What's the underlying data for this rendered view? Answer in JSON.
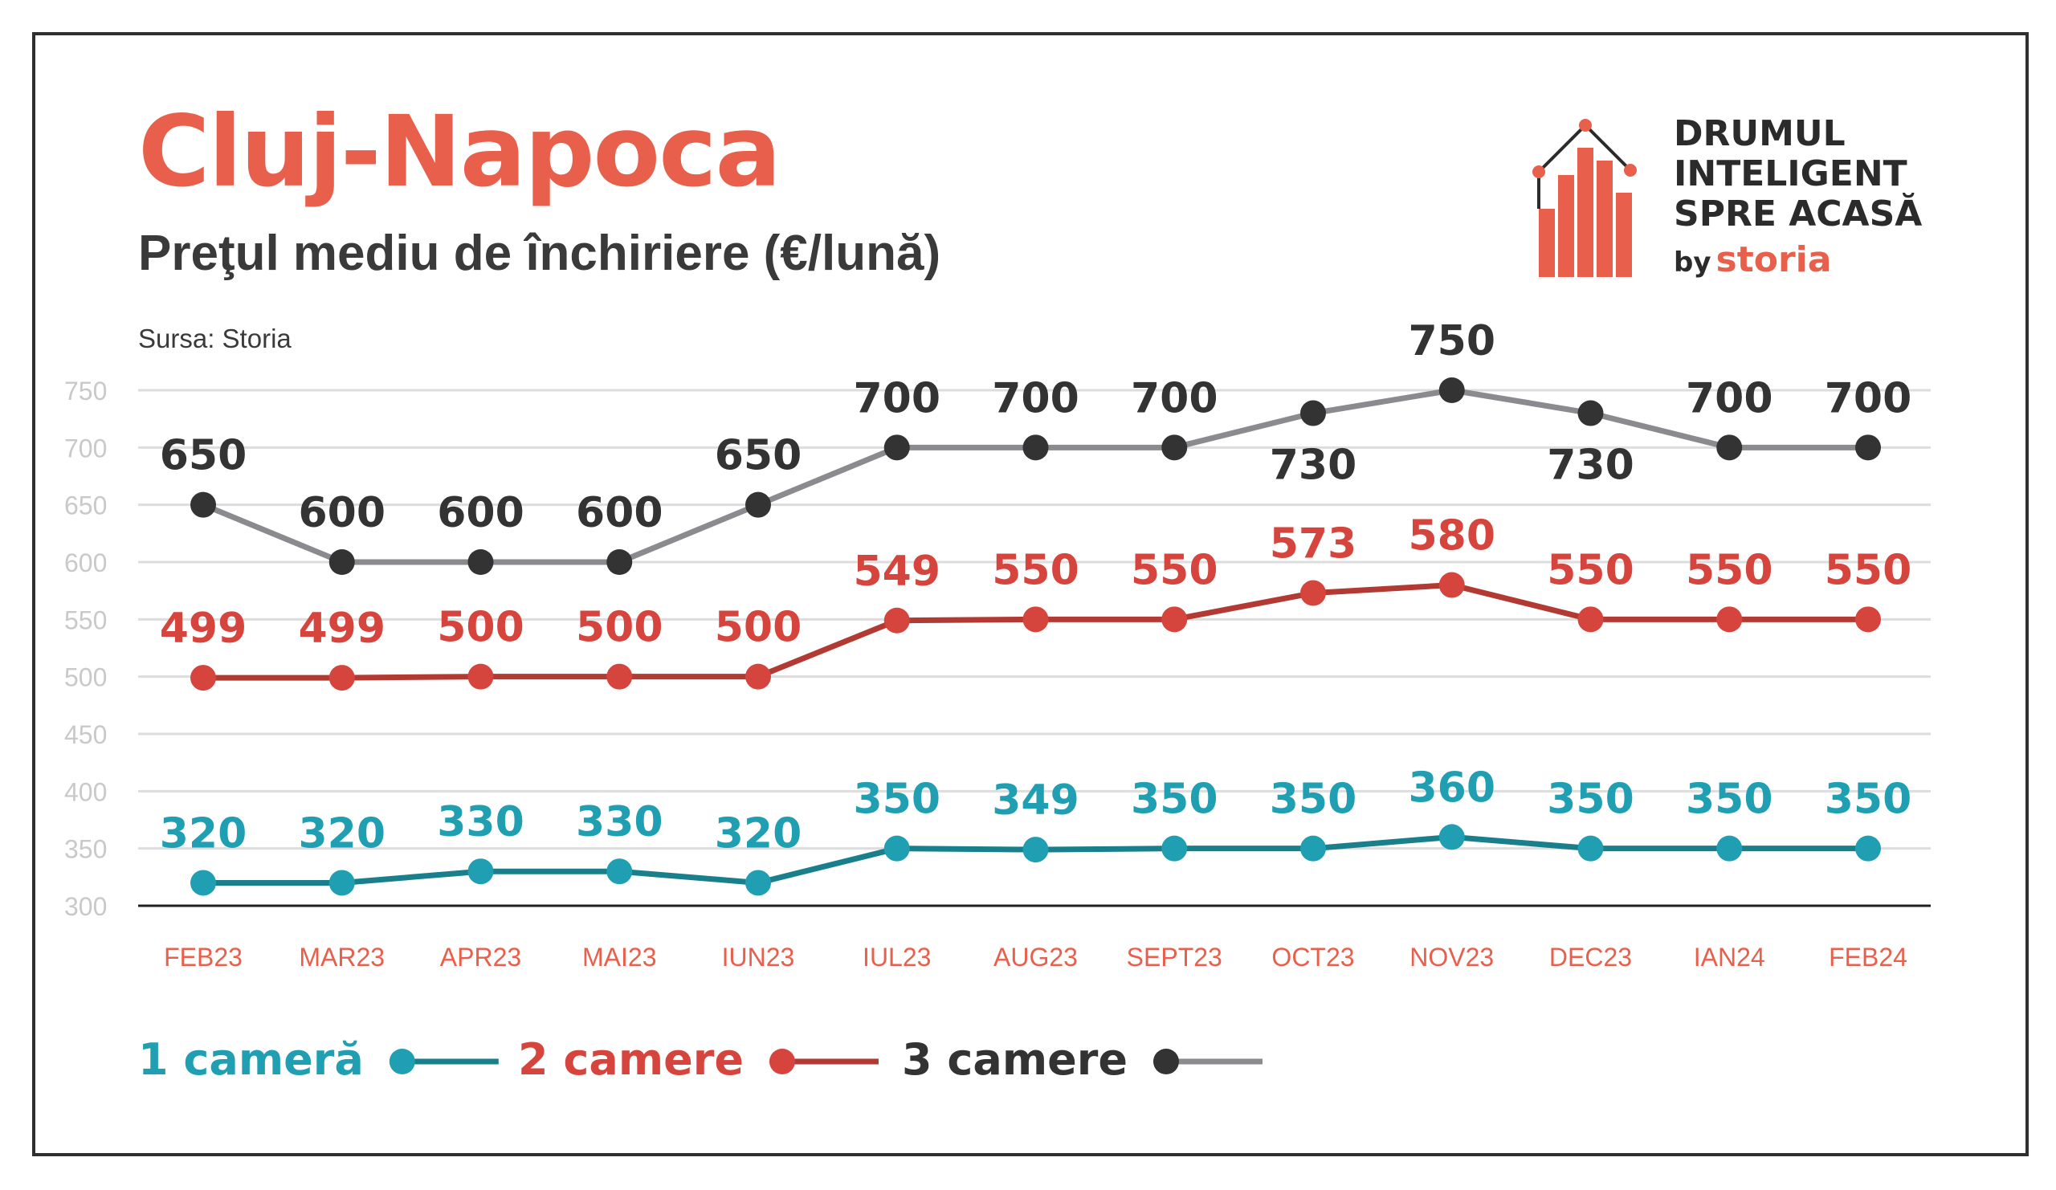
{
  "header": {
    "title": "Cluj-Napoca",
    "subtitle": "Preţul mediu de închiriere (€/lună)",
    "source": "Sursa: Storia"
  },
  "logo": {
    "line1": "DRUMUL",
    "line2": "INTELIGENT",
    "line3": "SPRE ACASĂ",
    "by": "by",
    "brand": "storia"
  },
  "colors": {
    "title": "#e8604c",
    "one_room": "#1f9fb1",
    "one_room_line": "#1a7f8c",
    "two_rooms": "#d6453d",
    "two_rooms_line": "#b23a32",
    "three_rooms": "#333333",
    "three_rooms_line": "#8a8a8f",
    "grid": "#dddddd",
    "axis": "#222222",
    "tick_y": "#c9c9c9",
    "tick_x": "#e8604c",
    "logo_accent": "#e8604c"
  },
  "chart_data": {
    "type": "line",
    "title": "Cluj-Napoca",
    "subtitle": "Preţul mediu de închiriere (€/lună)",
    "categories": [
      "FEB23",
      "MAR23",
      "APR23",
      "MAI23",
      "IUN23",
      "IUL23",
      "AUG23",
      "SEPT23",
      "OCT23",
      "NOV23",
      "DEC23",
      "IAN24",
      "FEB24"
    ],
    "ylim": [
      300,
      750
    ],
    "yticks": [
      300,
      350,
      400,
      450,
      500,
      550,
      600,
      650,
      700,
      750
    ],
    "grid": true,
    "legend_position": "bottom-left",
    "series": [
      {
        "name": "1 cameră",
        "values": [
          320,
          320,
          330,
          330,
          320,
          350,
          349,
          350,
          350,
          360,
          350,
          350,
          350
        ]
      },
      {
        "name": "2 camere",
        "values": [
          499,
          499,
          500,
          500,
          500,
          549,
          550,
          550,
          573,
          580,
          550,
          550,
          550
        ]
      },
      {
        "name": "3 camere",
        "values": [
          650,
          600,
          600,
          600,
          650,
          700,
          700,
          700,
          730,
          750,
          730,
          700,
          700
        ]
      }
    ]
  }
}
